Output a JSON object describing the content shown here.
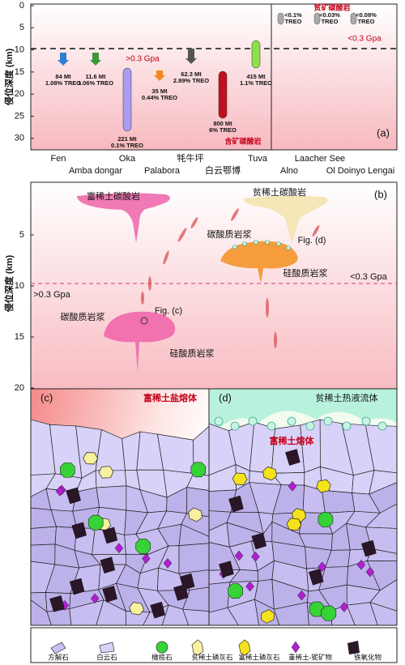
{
  "panel_a": {
    "label": "(a)",
    "y_axis_title": "侵位深度 (km)",
    "yticks": [
      "0",
      "5",
      "10",
      "15",
      "20",
      "25",
      "30"
    ],
    "pressure_high": ">0.3 Gpa",
    "pressure_low": "<0.3 Gpa",
    "group_ore": "含矿碳酸岩",
    "group_barren": "贫矿碳酸岩",
    "deposits": [
      {
        "tonnage": "84 Mt",
        "grade": "1.08% TREO"
      },
      {
        "tonnage": "11.6 Mt",
        "grade": "1.06% TREO"
      },
      {
        "tonnage": "221 Mt",
        "grade": "0.1% TREO"
      },
      {
        "tonnage": "35 Mt",
        "grade": "0.44% TREO"
      },
      {
        "tonnage": "62.3 Mt",
        "grade": "2.89% TREO"
      },
      {
        "tonnage": "800 Mt",
        "grade": "6% TREO"
      },
      {
        "tonnage": "415 Mt",
        "grade": "1.1% TREO"
      }
    ],
    "barren": [
      {
        "grade": "<0.1%",
        "unit": "TREO"
      },
      {
        "grade": "<0.03%",
        "unit": "TREO"
      },
      {
        "grade": "<0.08%",
        "unit": "TREO"
      }
    ],
    "sites": [
      "Fen",
      "Amba dongar",
      "Oka",
      "Palabora",
      "牦牛坪",
      "白云鄂博",
      "Tuva",
      "Laacher See",
      "Alno",
      "Ol Doinyo Lengai"
    ]
  },
  "panel_b": {
    "label": "(b)",
    "y_axis_title": "侵位深度 (km)",
    "yticks": [
      "5",
      "10",
      "15",
      "20"
    ],
    "rich": "富稀土碳酸岩",
    "poor": "贫稀土碳酸岩",
    "carb_magma_right": "碳酸质岩浆",
    "fig_d": "Fig. (d)",
    "sil_magma_right": "硅酸质岩浆",
    "pressure_low": "<0.3 Gpa",
    "pressure_high": ">0.3 Gpa",
    "carb_magma_left": "碳酸质岩浆",
    "fig_c": "Fig. (c)",
    "sil_magma_left": "硅酸质岩浆"
  },
  "panel_c": {
    "label": "(c)",
    "title": "富稀土盐熔体"
  },
  "panel_d": {
    "label": "(d)",
    "title": "贫稀土热液流体",
    "melt": "富稀土熔体"
  },
  "legend": [
    "方解石",
    "白云石",
    "橄榄石",
    "贫稀土磷灰石",
    "富稀土磷灰石",
    "重稀土-铌矿物",
    "铁氧化物"
  ]
}
